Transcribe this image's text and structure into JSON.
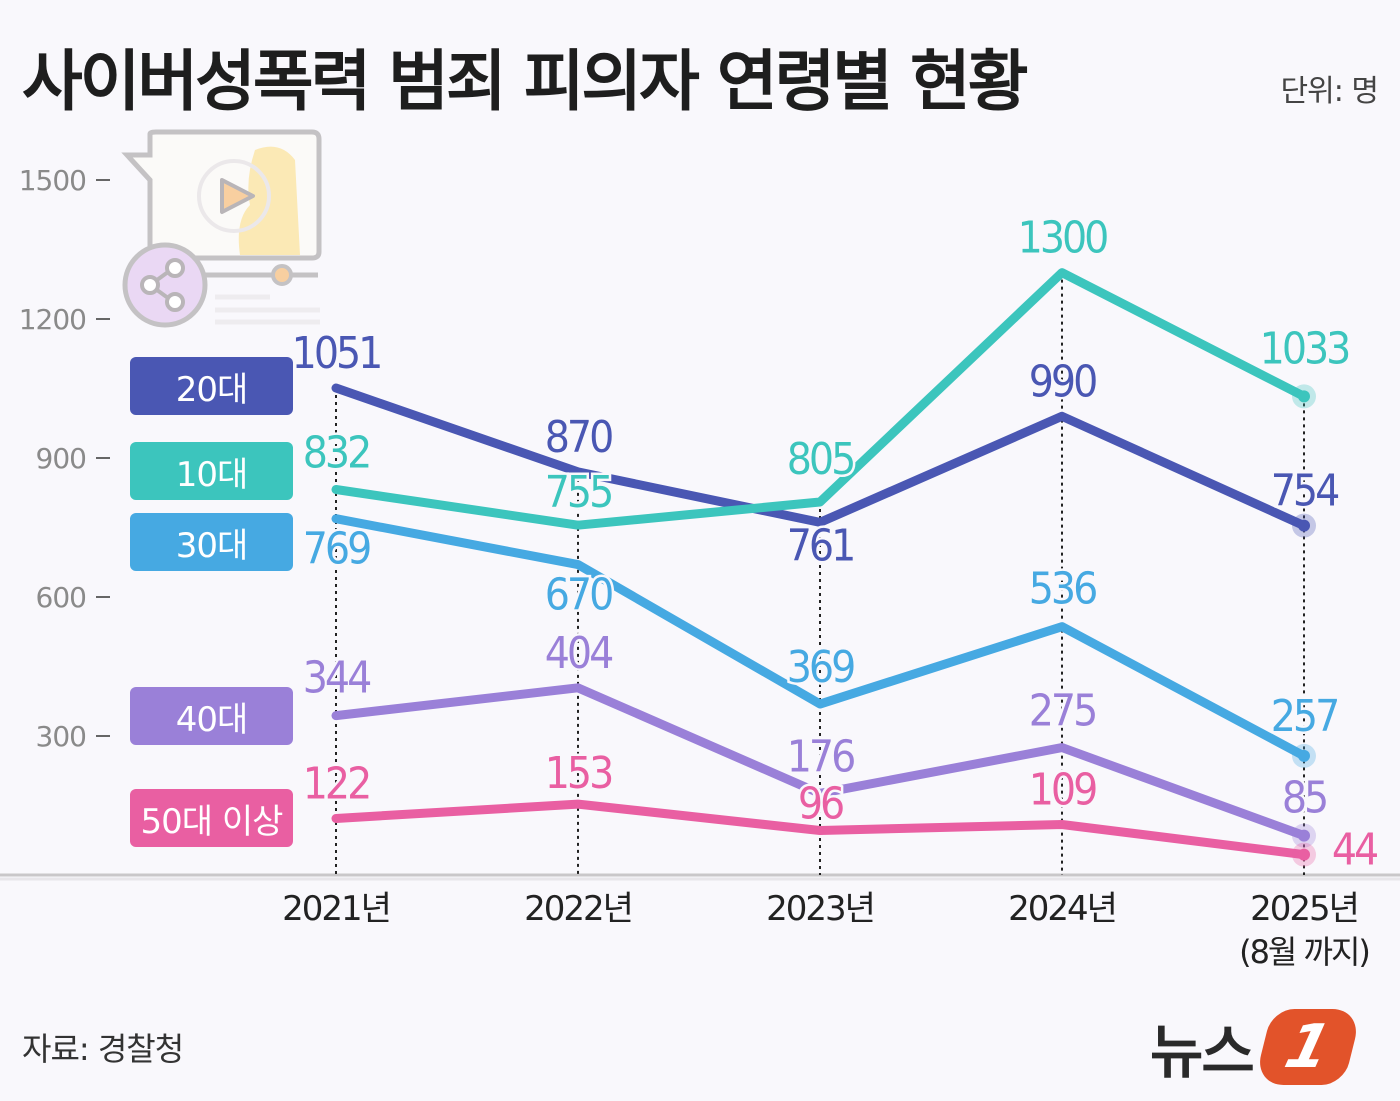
{
  "title": "사이버성폭력 범죄 피의자 연령별 현황",
  "unit": "단위: 명",
  "source": "자료: 경찰청",
  "logo": "뉴스1",
  "chart_data": {
    "type": "line",
    "categories": [
      "2021년",
      "2022년",
      "2023년",
      "2024년",
      "2025년"
    ],
    "category_notes": [
      "",
      "",
      "",
      "",
      "(8월 까지)"
    ],
    "yticks": [
      "1500",
      "1200",
      "900",
      "600",
      "300"
    ],
    "ylim": [
      0,
      1500
    ],
    "grid": false,
    "legend_position": "left",
    "series": [
      {
        "name": "20대",
        "color": "#4a57b3",
        "values": [
          1051,
          870,
          761,
          990,
          754
        ]
      },
      {
        "name": "10대",
        "color": "#3cc5bd",
        "values": [
          832,
          755,
          805,
          1300,
          1033
        ]
      },
      {
        "name": "30대",
        "color": "#46a9e2",
        "values": [
          769,
          670,
          369,
          536,
          257
        ]
      },
      {
        "name": "40대",
        "color": "#9a80d8",
        "values": [
          344,
          404,
          176,
          275,
          85
        ]
      },
      {
        "name": "50대 이상",
        "color": "#e95fa2",
        "values": [
          122,
          153,
          96,
          109,
          44
        ]
      }
    ]
  }
}
